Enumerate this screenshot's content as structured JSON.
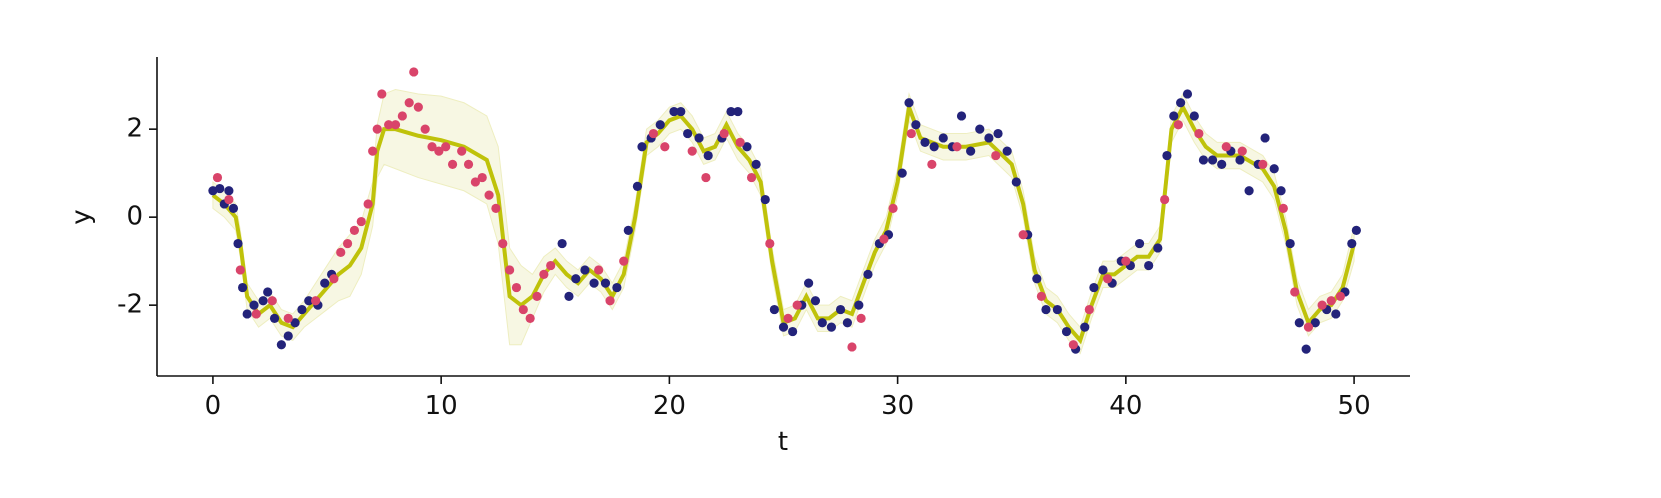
{
  "chart_data": {
    "type": "scatter",
    "x_label": "t",
    "y_label": "y",
    "xlim": [
      -2.45,
      52.45
    ],
    "ylim": [
      -3.61,
      3.64
    ],
    "xticks": [
      0,
      10,
      20,
      30,
      40,
      50
    ],
    "yticks": [
      -2,
      0,
      2
    ],
    "band": {
      "color": "#eeeec0",
      "x": [
        0,
        0.5,
        1,
        1.2,
        1.5,
        2,
        2.5,
        3,
        3.5,
        4,
        4.5,
        5,
        5.5,
        6,
        6.5,
        7,
        7.2,
        7.5,
        8,
        9,
        10,
        11,
        12,
        12.5,
        13,
        13.5,
        14,
        14.5,
        15,
        15.5,
        16,
        16.5,
        17,
        17.5,
        18,
        18.5,
        19,
        19.5,
        20,
        20.5,
        21,
        21.5,
        22,
        22.5,
        23,
        23.5,
        24,
        24.5,
        25,
        25.5,
        26,
        26.5,
        27,
        27.5,
        28,
        28.5,
        29,
        29.5,
        30,
        30.5,
        31,
        32,
        33,
        34,
        35,
        35.5,
        36,
        36.5,
        37,
        37.5,
        38,
        38.5,
        39,
        39.5,
        40,
        40.5,
        41,
        41.5,
        42,
        42.5,
        43,
        43.5,
        44,
        45,
        46,
        46.5,
        47,
        47.5,
        48,
        48.5,
        49,
        49.5,
        50
      ],
      "upper": [
        0.8,
        0.6,
        0.3,
        -0.3,
        -1.5,
        -1.9,
        -1.7,
        -2.1,
        -2.2,
        -1.9,
        -1.5,
        -1.1,
        -0.7,
        -0.4,
        -0.1,
        0.8,
        2.1,
        2.8,
        2.9,
        2.8,
        2.75,
        2.6,
        2.3,
        1.6,
        -0.7,
        -1.1,
        -1.3,
        -0.9,
        -0.7,
        -1.0,
        -1.2,
        -0.9,
        -1.1,
        -1.5,
        -1.0,
        0.3,
        2.0,
        2.2,
        2.5,
        2.6,
        2.3,
        1.8,
        1.9,
        2.4,
        1.9,
        1.6,
        1.1,
        -0.7,
        -2.1,
        -2.0,
        -1.5,
        -2.0,
        -2.0,
        -1.8,
        -1.9,
        -1.2,
        -0.5,
        0.0,
        1.1,
        2.8,
        2.1,
        1.9,
        1.9,
        2.0,
        1.5,
        0.6,
        -0.9,
        -1.6,
        -1.8,
        -2.2,
        -2.5,
        -1.7,
        -1.0,
        -1.0,
        -0.8,
        -0.6,
        -0.6,
        -0.2,
        2.3,
        2.8,
        2.3,
        1.9,
        1.7,
        1.7,
        1.4,
        1.0,
        0.0,
        -1.4,
        -2.1,
        -1.8,
        -1.7,
        -1.3,
        -0.2
      ],
      "lower": [
        0.2,
        0.0,
        -0.3,
        -0.9,
        -2.1,
        -2.5,
        -2.3,
        -2.7,
        -2.8,
        -2.5,
        -2.3,
        -2.1,
        -1.9,
        -1.8,
        -1.3,
        -0.2,
        0.9,
        1.2,
        1.1,
        0.9,
        0.75,
        0.6,
        0.3,
        -0.6,
        -2.9,
        -2.9,
        -2.3,
        -1.7,
        -1.3,
        -1.6,
        -1.8,
        -1.5,
        -1.7,
        -2.1,
        -1.6,
        -0.3,
        1.4,
        1.6,
        1.9,
        2.0,
        1.7,
        1.2,
        1.3,
        1.8,
        1.3,
        1.0,
        0.5,
        -1.3,
        -2.7,
        -2.6,
        -2.1,
        -2.6,
        -2.6,
        -2.4,
        -2.5,
        -1.8,
        -1.1,
        -0.6,
        0.5,
        2.2,
        1.5,
        1.3,
        1.3,
        1.4,
        0.9,
        0.0,
        -1.5,
        -2.2,
        -2.4,
        -2.8,
        -3.1,
        -2.3,
        -1.6,
        -1.6,
        -1.4,
        -1.2,
        -1.2,
        -0.8,
        1.7,
        2.2,
        1.7,
        1.3,
        1.1,
        1.1,
        0.8,
        0.4,
        -0.6,
        -2.0,
        -2.7,
        -2.4,
        -2.3,
        -1.9,
        -1.0
      ]
    },
    "line": {
      "color": "#bfc20a",
      "x": [
        0,
        0.5,
        1,
        1.2,
        1.5,
        2,
        2.5,
        3,
        3.5,
        4,
        4.5,
        5,
        5.5,
        6,
        6.5,
        7,
        7.2,
        7.5,
        8,
        9,
        10,
        11,
        12,
        12.5,
        13,
        13.5,
        14,
        14.5,
        15,
        15.5,
        16,
        16.5,
        17,
        17.5,
        18,
        18.5,
        19,
        19.5,
        20,
        20.5,
        21,
        21.5,
        22,
        22.5,
        23,
        23.5,
        24,
        24.5,
        25,
        25.5,
        26,
        26.5,
        27,
        27.5,
        28,
        28.5,
        29,
        29.5,
        30,
        30.5,
        31,
        32,
        33,
        34,
        35,
        35.5,
        36,
        36.5,
        37,
        37.5,
        38,
        38.5,
        39,
        39.5,
        40,
        40.5,
        41,
        41.5,
        42,
        42.5,
        43,
        43.5,
        44,
        45,
        46,
        46.5,
        47,
        47.5,
        48,
        48.5,
        49,
        49.5,
        50
      ],
      "values": [
        0.5,
        0.3,
        0.0,
        -0.6,
        -1.8,
        -2.2,
        -2.0,
        -2.4,
        -2.5,
        -2.2,
        -1.9,
        -1.6,
        -1.3,
        -1.1,
        -0.7,
        0.3,
        1.5,
        2.0,
        2.0,
        1.85,
        1.75,
        1.6,
        1.3,
        0.5,
        -1.8,
        -2.0,
        -1.8,
        -1.3,
        -1.0,
        -1.3,
        -1.5,
        -1.2,
        -1.4,
        -1.8,
        -1.3,
        0,
        1.7,
        1.9,
        2.2,
        2.3,
        2.0,
        1.5,
        1.6,
        2.1,
        1.6,
        1.3,
        0.8,
        -1.0,
        -2.4,
        -2.3,
        -1.8,
        -2.3,
        -2.3,
        -2.1,
        -2.2,
        -1.5,
        -0.8,
        -0.3,
        0.8,
        2.5,
        1.8,
        1.6,
        1.6,
        1.7,
        1.2,
        0.3,
        -1.2,
        -1.9,
        -2.1,
        -2.5,
        -2.8,
        -2.0,
        -1.3,
        -1.3,
        -1.1,
        -0.9,
        -0.9,
        -0.5,
        2.0,
        2.5,
        2.0,
        1.6,
        1.4,
        1.4,
        1.1,
        0.7,
        -0.3,
        -1.7,
        -2.4,
        -2.1,
        -2.0,
        -1.6,
        -0.6
      ]
    },
    "series": [
      {
        "color": "#23237a",
        "x": [
          0,
          0.3,
          0.5,
          0.7,
          0.9,
          1.1,
          1.3,
          1.5,
          1.8,
          2.2,
          2.4,
          2.7,
          3.0,
          3.3,
          3.6,
          3.9,
          4.2,
          4.6,
          4.9,
          5.2,
          15.3,
          15.6,
          15.9,
          16.3,
          16.7,
          17.2,
          17.7,
          18.2,
          18.6,
          18.8,
          19.2,
          19.6,
          20.2,
          20.5,
          20.8,
          21.3,
          21.7,
          22.3,
          22.7,
          23.0,
          23.4,
          23.8,
          24.2,
          24.6,
          25.0,
          25.4,
          25.8,
          26.1,
          26.4,
          26.7,
          27.1,
          27.5,
          27.8,
          28.3,
          28.7,
          29.2,
          29.6,
          30.2,
          30.5,
          30.8,
          31.2,
          31.6,
          32.0,
          32.4,
          32.8,
          33.2,
          33.6,
          34.0,
          34.4,
          34.8,
          35.2,
          35.7,
          36.1,
          36.5,
          37.0,
          37.4,
          37.8,
          38.2,
          38.6,
          39.0,
          39.4,
          39.8,
          40.2,
          40.6,
          41.0,
          41.4,
          41.8,
          42.1,
          42.4,
          42.7,
          43.0,
          43.4,
          43.8,
          44.2,
          44.6,
          45.0,
          45.4,
          45.8,
          46.1,
          46.5,
          46.8,
          47.2,
          47.6,
          47.9,
          48.3,
          48.8,
          49.2,
          49.6,
          49.9,
          50.1
        ],
        "values": [
          0.6,
          0.65,
          0.3,
          0.6,
          0.2,
          -0.6,
          -1.6,
          -2.2,
          -2.0,
          -1.9,
          -1.7,
          -2.3,
          -2.9,
          -2.7,
          -2.4,
          -2.1,
          -1.9,
          -2.0,
          -1.5,
          -1.3,
          -0.6,
          -1.8,
          -1.4,
          -1.2,
          -1.5,
          -1.5,
          -1.6,
          -0.3,
          0.7,
          1.6,
          1.8,
          2.1,
          2.4,
          2.4,
          1.9,
          1.8,
          1.4,
          1.8,
          2.4,
          2.4,
          1.6,
          1.2,
          0.4,
          -2.1,
          -2.5,
          -2.6,
          -2.0,
          -1.5,
          -1.9,
          -2.4,
          -2.5,
          -2.1,
          -2.4,
          -2.0,
          -1.3,
          -0.6,
          -0.4,
          1.0,
          2.6,
          2.1,
          1.7,
          1.6,
          1.8,
          1.6,
          2.3,
          1.5,
          2.0,
          1.8,
          1.9,
          1.5,
          0.8,
          -0.4,
          -1.4,
          -2.1,
          -2.1,
          -2.6,
          -3.0,
          -2.5,
          -1.6,
          -1.2,
          -1.5,
          -1.0,
          -1.1,
          -0.6,
          -1.1,
          -0.7,
          1.4,
          2.3,
          2.6,
          2.8,
          2.3,
          1.3,
          1.3,
          1.2,
          1.5,
          1.3,
          0.6,
          1.2,
          1.8,
          1.1,
          0.6,
          -0.6,
          -2.4,
          -3.0,
          -2.4,
          -2.1,
          -2.2,
          -1.7,
          -0.6,
          -0.3
        ]
      },
      {
        "color": "#d9446a",
        "x": [
          0.2,
          0.7,
          1.2,
          1.9,
          2.6,
          3.3,
          4.5,
          5.3,
          5.6,
          5.9,
          6.2,
          6.5,
          6.8,
          7.0,
          7.2,
          7.4,
          7.7,
          8.0,
          8.3,
          8.6,
          8.8,
          9.0,
          9.3,
          9.6,
          9.9,
          10.2,
          10.5,
          10.9,
          11.2,
          11.5,
          11.8,
          12.1,
          12.4,
          12.7,
          13.0,
          13.3,
          13.6,
          13.9,
          14.2,
          14.5,
          14.8,
          16.9,
          17.4,
          18.0,
          19.3,
          19.8,
          21.0,
          21.6,
          22.4,
          23.1,
          23.6,
          24.4,
          25.2,
          25.6,
          28.0,
          28.4,
          29.4,
          29.8,
          30.6,
          31.5,
          32.6,
          34.3,
          35.5,
          36.3,
          37.7,
          38.4,
          39.2,
          40.0,
          41.7,
          42.3,
          43.2,
          44.4,
          45.1,
          46.0,
          46.9,
          47.4,
          48.0,
          48.6,
          49.0,
          49.4
        ],
        "values": [
          0.9,
          0.4,
          -1.2,
          -2.2,
          -1.9,
          -2.3,
          -1.9,
          -1.4,
          -0.8,
          -0.6,
          -0.3,
          -0.1,
          0.3,
          1.5,
          2.0,
          2.8,
          2.1,
          2.1,
          2.3,
          2.6,
          3.3,
          2.5,
          2.0,
          1.6,
          1.5,
          1.6,
          1.2,
          1.5,
          1.2,
          0.8,
          0.9,
          0.5,
          0.2,
          -0.6,
          -1.2,
          -1.6,
          -2.1,
          -2.3,
          -1.8,
          -1.3,
          -1.1,
          -1.2,
          -1.9,
          -1.0,
          1.9,
          1.6,
          1.5,
          0.9,
          1.9,
          1.7,
          0.9,
          -0.6,
          -2.3,
          -2.0,
          -2.95,
          -2.3,
          -0.5,
          0.2,
          1.9,
          1.2,
          1.6,
          1.4,
          -0.4,
          -1.8,
          -2.9,
          -2.1,
          -1.4,
          -1.0,
          0.4,
          2.1,
          1.9,
          1.6,
          1.5,
          1.2,
          0.2,
          -1.7,
          -2.5,
          -2.0,
          -1.9,
          -1.8
        ]
      }
    ]
  }
}
